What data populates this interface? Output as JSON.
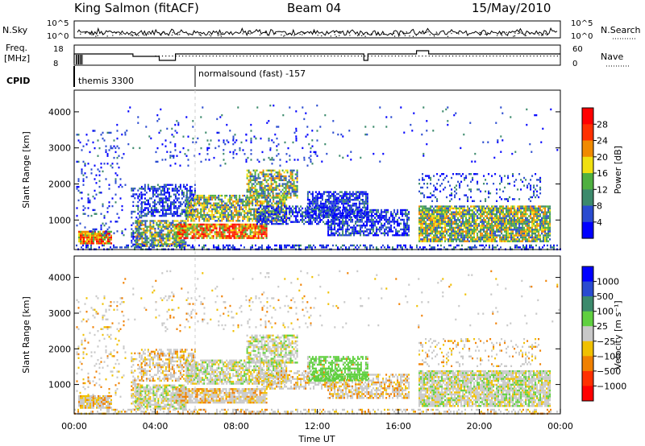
{
  "header": {
    "station": "King Salmon (fitACF)",
    "beam": "Beam 04",
    "date": "15/May/2010"
  },
  "noise_panel": {
    "left_label": "N.Sky",
    "right_label": "N.Search",
    "left_ticks": [
      "10^5",
      "10^0"
    ],
    "right_ticks": [
      "10^5",
      "10^0"
    ]
  },
  "freq_panel": {
    "left_label_1": "Freq.",
    "left_label_2": "[MHz]",
    "right_label": "Nave",
    "left_ticks": [
      "18",
      "8"
    ],
    "right_ticks": [
      "60",
      "0"
    ]
  },
  "cpid": {
    "label": "CPID",
    "segments": [
      {
        "label": "themis 3300",
        "start_hour": 0.0
      },
      {
        "label": "normalsound (fast) -157",
        "start_hour": 6.0
      }
    ]
  },
  "chart_data": [
    {
      "type": "heatmap",
      "parameter": "power",
      "ylabel": "Slant Range [km]",
      "ylim": [
        180,
        4600
      ],
      "yticks": [
        1000,
        2000,
        3000,
        4000
      ],
      "colorbar": {
        "label": "Power [dB]",
        "ticks": [
          "4",
          "8",
          "12",
          "16",
          "20",
          "24",
          "28"
        ],
        "colors": [
          "#0000ff",
          "#2a4bd0",
          "#3c8a6c",
          "#4fb040",
          "#f0e010",
          "#f08a00",
          "#ff3000",
          "#ff0000"
        ]
      }
    },
    {
      "type": "heatmap",
      "parameter": "velocity",
      "xlabel": "Time UT",
      "ylabel": "Slant Range [km]",
      "xlim": [
        0,
        24
      ],
      "ylim": [
        180,
        4600
      ],
      "xticks": [
        "00:00",
        "04:00",
        "08:00",
        "12:00",
        "16:00",
        "20:00",
        "00:00"
      ],
      "yticks": [
        1000,
        2000,
        3000,
        4000
      ],
      "colorbar": {
        "label": "Velocity [m s⁻¹]",
        "ticks": [
          "1000",
          "500",
          "100",
          "25",
          "−25",
          "−100",
          "−500",
          "−1000"
        ],
        "colors": [
          "#0000ff",
          "#2a4bd0",
          "#3c8a6c",
          "#60d040",
          "#c8c8c8",
          "#f0c000",
          "#f08000",
          "#ff3000",
          "#ff0000"
        ]
      }
    }
  ]
}
